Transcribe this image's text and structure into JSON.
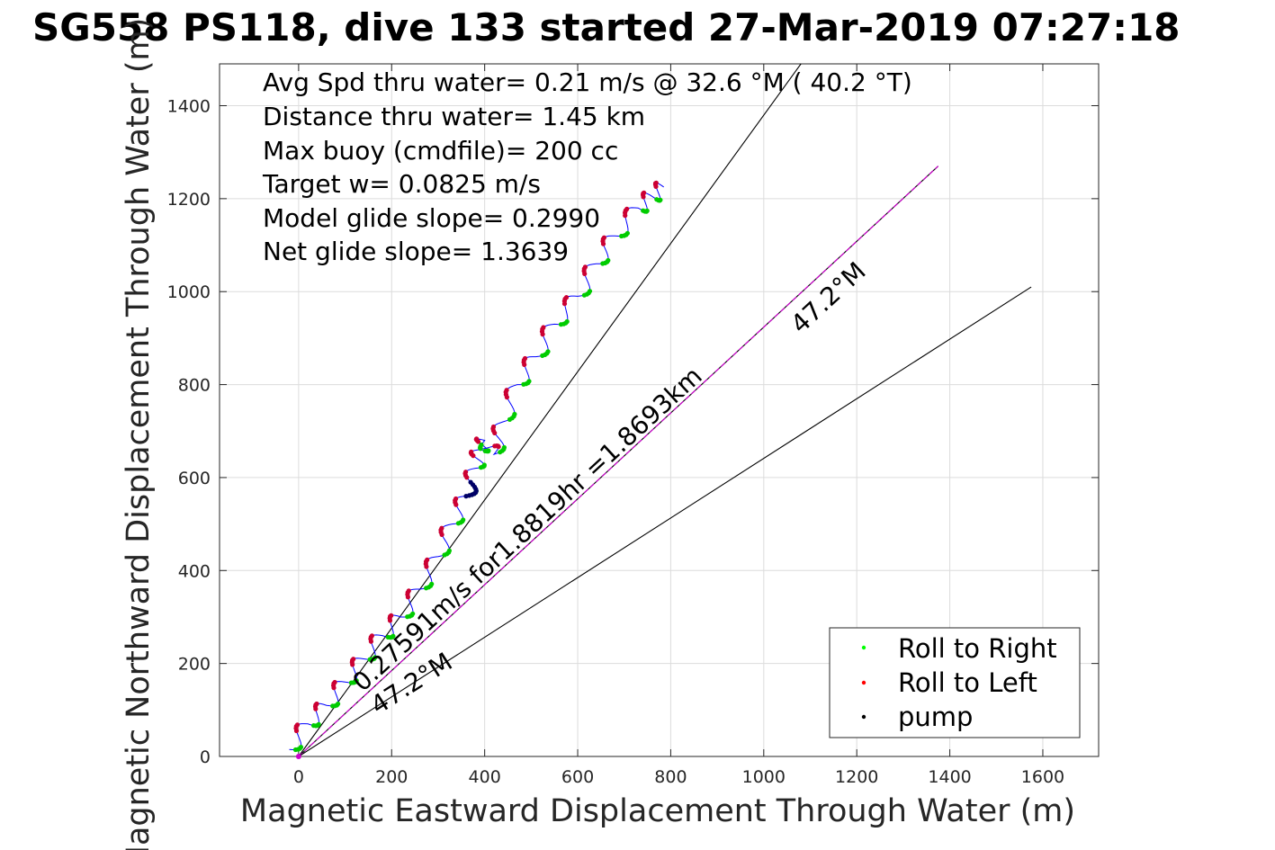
{
  "title": "SG558 PS118, dive 133 started 27-Mar-2019 07:27:18",
  "chart_data": {
    "type": "line",
    "title": "SG558 PS118, dive 133 started 27-Mar-2019 07:27:18",
    "xlabel": "Magnetic Eastward Displacement Through Water (m)",
    "ylabel": "Magnetic Northward Displacement Through Water (m)",
    "xlim": [
      -170,
      1720
    ],
    "ylim": [
      0,
      1490
    ],
    "xticks": [
      "0",
      "200",
      "400",
      "600",
      "800",
      "1000",
      "1200",
      "1400",
      "1600"
    ],
    "yticks": [
      "0",
      "200",
      "400",
      "600",
      "800",
      "1000",
      "1200",
      "1400"
    ],
    "grid": true,
    "annotations": [
      "Avg Spd thru water=  0.21 m/s @  32.6 °M ( 40.2 °T)",
      "Distance thru water=  1.45 km",
      "Max buoy (cmdfile)= 200 cc",
      "Target w= 0.0825 m/s",
      "Model glide slope= 0.2990",
      "Net glide slope= 1.3639"
    ],
    "rotated_labels": {
      "current": "0.27591m/s for1.8819hr =1.8693km",
      "heading_upper": "47.2°M",
      "heading_lower": "47.2°M"
    },
    "track": {
      "x": [
        -20,
        20,
        60,
        100,
        140,
        180,
        220,
        260,
        300,
        330,
        360,
        380,
        390,
        400,
        420,
        440,
        470,
        510,
        550,
        600,
        640,
        680,
        730,
        760,
        785
      ],
      "y": [
        15,
        70,
        110,
        160,
        210,
        260,
        300,
        360,
        430,
        500,
        560,
        620,
        660,
        680,
        650,
        720,
        800,
        860,
        930,
        990,
        1060,
        1120,
        1180,
        1205,
        1225
      ]
    },
    "reference_lines": [
      {
        "from": [
          0,
          0
        ],
        "to": [
          1080,
          1490
        ],
        "color": "#000000"
      },
      {
        "from": [
          0,
          0
        ],
        "to": [
          1375,
          1270
        ],
        "color": "#000000"
      },
      {
        "from": [
          0,
          0
        ],
        "to": [
          1375,
          1270
        ],
        "color": "#cc00cc"
      },
      {
        "from": [
          0,
          0
        ],
        "to": [
          1575,
          1010
        ],
        "color": "#000000"
      }
    ],
    "colors": {
      "track": "#0000ff",
      "roll_right": "#00cc00",
      "roll_left": "#cc0033",
      "pump": "#000066",
      "current_line": "#cc00cc"
    },
    "legend": {
      "placement": "bottom-right",
      "entries": [
        {
          "label": "Roll to Right",
          "color": "#00ff00"
        },
        {
          "label": "Roll to Left",
          "color": "#ff0000"
        },
        {
          "label": "pump",
          "color": "#000000"
        }
      ]
    }
  }
}
